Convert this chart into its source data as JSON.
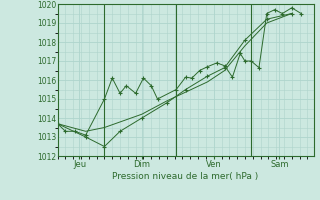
{
  "xlabel": "Pression niveau de la mer( hPa )",
  "bg_color": "#cce8e0",
  "grid_color": "#aed4cc",
  "line_color": "#2d6a2d",
  "ylim": [
    1012,
    1020
  ],
  "yticks": [
    1012,
    1013,
    1014,
    1015,
    1016,
    1017,
    1018,
    1019,
    1020
  ],
  "xlim": [
    0,
    8.2
  ],
  "day_labels": [
    "Jeu",
    "Dim",
    "Ven",
    "Sam"
  ],
  "day_positions": [
    0.7,
    2.7,
    5.0,
    7.1
  ],
  "vline_positions": [
    1.5,
    3.8,
    6.2
  ],
  "series1_x": [
    0.0,
    0.25,
    0.55,
    0.9,
    1.5,
    1.75,
    2.0,
    2.2,
    2.5,
    2.75,
    3.0,
    3.2,
    3.8,
    4.1,
    4.3,
    4.55,
    4.8,
    5.1,
    5.35,
    5.6,
    5.85,
    6.0,
    6.2,
    6.45,
    6.7,
    6.95,
    7.2,
    7.5,
    7.8
  ],
  "series1_y": [
    1013.7,
    1013.3,
    1013.3,
    1013.1,
    1015.0,
    1016.1,
    1015.3,
    1015.7,
    1015.3,
    1016.1,
    1015.7,
    1015.0,
    1015.5,
    1016.15,
    1016.1,
    1016.5,
    1016.7,
    1016.9,
    1016.75,
    1016.15,
    1017.4,
    1017.0,
    1017.0,
    1016.65,
    1019.5,
    1019.7,
    1019.5,
    1019.8,
    1019.5
  ],
  "series2_x": [
    0.0,
    0.9,
    1.5,
    2.0,
    2.7,
    3.5,
    4.1,
    4.8,
    5.35,
    6.0,
    6.7,
    7.5
  ],
  "series2_y": [
    1013.7,
    1013.0,
    1012.5,
    1013.3,
    1014.0,
    1014.8,
    1015.5,
    1016.2,
    1016.65,
    1018.1,
    1019.2,
    1019.5
  ],
  "series3_x": [
    0.0,
    0.9,
    1.5,
    2.7,
    3.5,
    4.8,
    5.35,
    6.0,
    6.7,
    7.5
  ],
  "series3_y": [
    1013.7,
    1013.3,
    1013.5,
    1014.2,
    1014.9,
    1015.9,
    1016.5,
    1017.8,
    1019.0,
    1019.5
  ]
}
